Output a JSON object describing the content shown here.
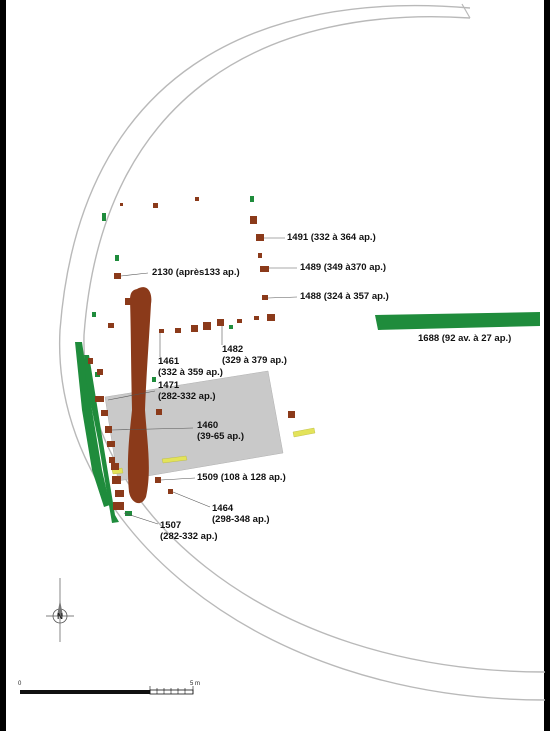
{
  "colors": {
    "background": "#ffffff",
    "ditch": "#b9b9b9",
    "excavation_zone": "#c9c9c9",
    "feature_brown": "#8b3a1a",
    "feature_green": "#1f8c3c",
    "feature_yellow": "#e3e35a"
  },
  "labels": {
    "f1491": "1491 (332 à 364 ap.)",
    "f1489": "1489 (349 à370 ap.)",
    "f1488": "1488 (324 à 357 ap.)",
    "f2130": "2130 (après133 ap.)",
    "f1688": "1688 (92 av. à 27 ap.)",
    "f1461_id": "1461",
    "f1461_date": "(332 à 359 ap.)",
    "f1482_id": "1482",
    "f1482_date": "(329 à 379 ap.)",
    "f1471_id": "1471",
    "f1471_date": "(282-332 ap.)",
    "f1460_id": "1460",
    "f1460_date": "(39-65 ap.)",
    "f1509": "1509 (108 à 128 ap.)",
    "f1464_id": "1464",
    "f1464_date": "(298-348 ap.)",
    "f1507_id": "1507",
    "f1507_date": "(282-332 ap.)"
  },
  "north_arrow": {
    "letter": "N",
    "icon": "north-arrow-icon"
  },
  "scale_bar": {
    "start_label": "0",
    "end_label": "5 m"
  }
}
